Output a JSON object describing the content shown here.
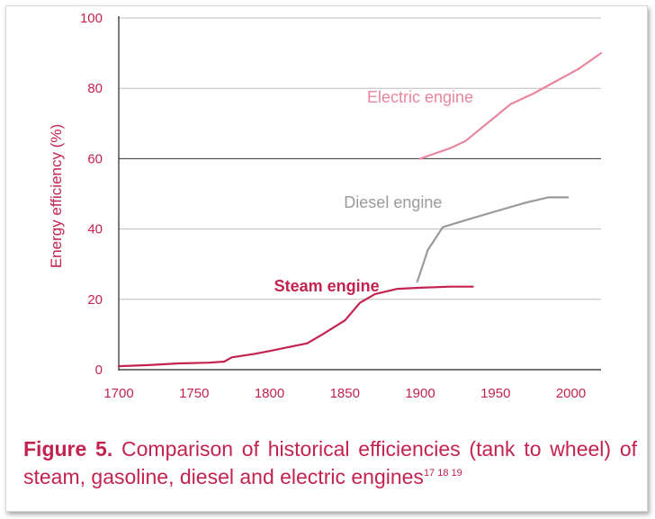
{
  "chart_data": {
    "type": "line",
    "title": "",
    "xlabel": "",
    "ylabel": "Energy efficiency (%)",
    "xlim": [
      1700,
      2020
    ],
    "ylim": [
      0,
      100
    ],
    "xticks": [
      "1700",
      "1750",
      "1800",
      "1850",
      "1900",
      "1950",
      "2000"
    ],
    "yticks": [
      "0",
      "20",
      "40",
      "60",
      "80",
      "100"
    ],
    "grid": "horizontal",
    "series": [
      {
        "name": "Steam engine",
        "color": "#c2234f",
        "x": [
          1700,
          1720,
          1740,
          1760,
          1770,
          1775,
          1790,
          1800,
          1810,
          1825,
          1835,
          1850,
          1860,
          1870,
          1885,
          1900,
          1920,
          1935
        ],
        "y": [
          1,
          1.3,
          1.8,
          2,
          2.3,
          3.5,
          4.5,
          5.3,
          6.2,
          7.5,
          10,
          14,
          19,
          21.5,
          23,
          23.3,
          23.6,
          23.6
        ]
      },
      {
        "name": "Diesel engine",
        "color": "#9a9a9a",
        "x": [
          1898,
          1902,
          1905,
          1915,
          1930,
          1950,
          1970,
          1985,
          1998
        ],
        "y": [
          25,
          30,
          34,
          40.5,
          42.5,
          45,
          47.5,
          49,
          49
        ]
      },
      {
        "name": "Electric engine",
        "color": "#e8869f",
        "x": [
          1900,
          1910,
          1920,
          1930,
          1940,
          1950,
          1960,
          1975,
          1990,
          2005,
          2020
        ],
        "y": [
          60,
          61.5,
          63,
          65,
          68.5,
          72,
          75.5,
          78.5,
          82,
          85.5,
          90
        ]
      }
    ]
  },
  "caption": {
    "lead": "Figure 5.",
    "text": "Comparison of historical efficiencies (tank to wheel) of steam, gasoline, diesel and electric engines",
    "refs": "17 18 19"
  }
}
